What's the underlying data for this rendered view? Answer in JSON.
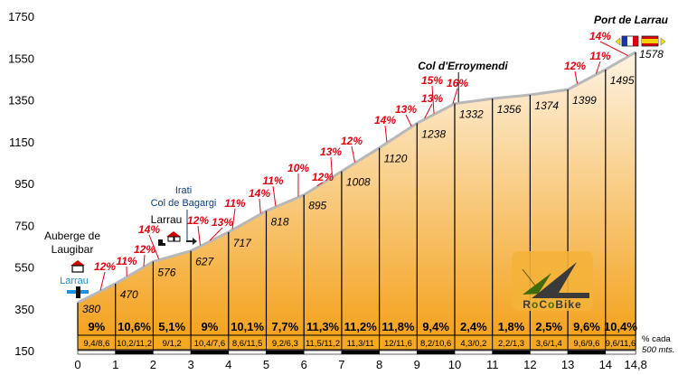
{
  "chart_data": {
    "type": "area",
    "title": "Port de Larrau",
    "xlabel": "km",
    "ylabel": "m",
    "xlim": [
      0,
      14.8
    ],
    "ylim": [
      150,
      1750
    ],
    "y_ticks": [
      "150",
      "350",
      "550",
      "750",
      "950",
      "1150",
      "1350",
      "1550",
      "1750"
    ],
    "y_tick_values": [
      150,
      350,
      550,
      750,
      950,
      1150,
      1350,
      1550,
      1750
    ],
    "x_ticks": [
      "0",
      "1",
      "2",
      "3",
      "4",
      "5",
      "6",
      "7",
      "8",
      "9",
      "10",
      "11",
      "12",
      "13",
      "14",
      "14,8"
    ],
    "x_tick_values": [
      0,
      1,
      2,
      3,
      4,
      5,
      6,
      7,
      8,
      9,
      10,
      11,
      12,
      13,
      14,
      14.8
    ],
    "km": [
      0,
      1,
      2,
      3,
      4,
      5,
      6,
      7,
      8,
      9,
      10,
      11,
      12,
      13,
      14,
      14.8
    ],
    "elevations": [
      380,
      470,
      576,
      627,
      717,
      818,
      895,
      1008,
      1120,
      1238,
      1332,
      1356,
      1374,
      1399,
      1495,
      1578
    ],
    "elevation_labels": [
      "380",
      "470",
      "576",
      "627",
      "717",
      "818",
      "895",
      "1008",
      "1120",
      "1238",
      "1332",
      "1356",
      "1374",
      "1399",
      "1495",
      "1578"
    ],
    "segment_gradients": [
      "9%",
      "10,6%",
      "5,1%",
      "9%",
      "10,1%",
      "7,7%",
      "11,3%",
      "11,2%",
      "11,8%",
      "9,4%",
      "2,4%",
      "1,8%",
      "2,5%",
      "9,6%",
      "10,4%"
    ],
    "segment_sub_gradients": [
      "9,4/8,6",
      "10,2/11,2",
      "9/1,2",
      "10,4/7,6",
      "8,6/11,5",
      "9,2/6,3",
      "11,5/11,2",
      "11,3/11",
      "12/11,6",
      "8,2/10,6",
      "4,3/0,2",
      "2,2/1,3",
      "3,6/1,4",
      "9,6/9,6",
      "9,6/11,6"
    ],
    "sub_gradient_legend": [
      "% cada",
      "500 mts."
    ],
    "max_gradients": [
      {
        "km": 0.6,
        "label": "12%"
      },
      {
        "km": 1.3,
        "label": "11%"
      },
      {
        "km": 1.75,
        "label": "12%"
      },
      {
        "km": 2.15,
        "label": "14%"
      },
      {
        "km": 3.25,
        "label": "12%"
      },
      {
        "km": 3.5,
        "label": "13%"
      },
      {
        "km": 4.1,
        "label": "11%"
      },
      {
        "km": 4.85,
        "label": "14%"
      },
      {
        "km": 5.25,
        "label": "11%"
      },
      {
        "km": 5.85,
        "label": "10%"
      },
      {
        "km": 6.35,
        "label": "12%"
      },
      {
        "km": 6.75,
        "label": "13%"
      },
      {
        "km": 7.35,
        "label": "12%"
      },
      {
        "km": 8.2,
        "label": "14%"
      },
      {
        "km": 8.85,
        "label": "13%"
      },
      {
        "km": 9.2,
        "label": "13%"
      },
      {
        "km": 9.45,
        "label": "15%"
      },
      {
        "km": 9.95,
        "label": "16%"
      },
      {
        "km": 13.25,
        "label": "12%"
      },
      {
        "km": 13.75,
        "label": "11%"
      },
      {
        "km": 14.6,
        "label": "14%"
      }
    ],
    "annotations": {
      "start": [
        "Auberge de",
        "Laugibar"
      ],
      "start_town": "Larrau",
      "town2": "Larrau",
      "junction": [
        "Irati",
        "Col de Bagargi"
      ],
      "col": "Col d'Erroymendi",
      "summit": "Port de Larrau"
    },
    "grid": false
  },
  "logo": "RoCoBike",
  "colors": {
    "fill_top": "#fdf3e3",
    "fill_bottom": "#f4a31f",
    "band": "#f5a922",
    "profile": "#b8b8b8",
    "gradient_text": "#e8000b"
  }
}
